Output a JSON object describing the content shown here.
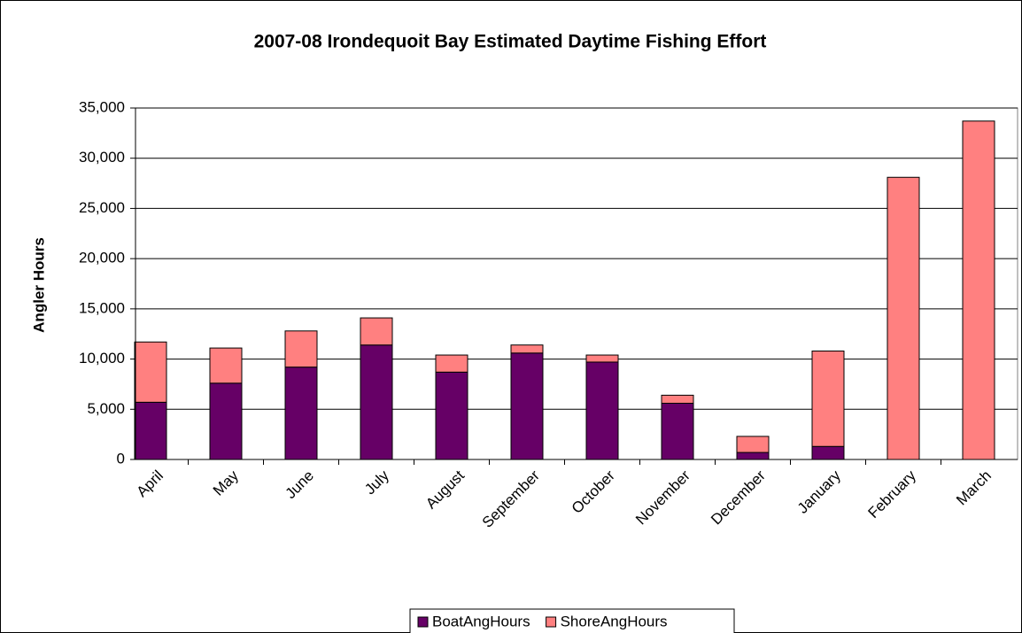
{
  "chart_data": {
    "type": "stacked_bar",
    "title": "2007-08 Irondequoit  Bay Estimated Daytime Fishing Effort",
    "ylabel": "Angler Hours",
    "categories": [
      "April",
      "May",
      "June",
      "July",
      "August",
      "September",
      "October",
      "November",
      "December",
      "January",
      "February",
      "March"
    ],
    "series": [
      {
        "name": "BoatAngHours",
        "color": "#660066",
        "values": [
          5700,
          7600,
          9200,
          11400,
          8700,
          10600,
          9700,
          5600,
          700,
          1300,
          0,
          0
        ]
      },
      {
        "name": "ShoreAngHours",
        "color": "#ff8080",
        "values": [
          6000,
          3500,
          3600,
          2700,
          1700,
          800,
          700,
          800,
          1600,
          9500,
          28100,
          33700
        ]
      }
    ],
    "ylim": [
      0,
      35000
    ],
    "yticks": [
      0,
      {
        "value": 5000,
        "label": "5,000"
      },
      {
        "value": 10000,
        "label": "10,000"
      },
      {
        "value": 15000,
        "label": "15,000"
      },
      {
        "value": 20000,
        "label": "20,000"
      },
      {
        "value": 25000,
        "label": "25,000"
      },
      {
        "value": 30000,
        "label": "30,000"
      },
      {
        "value": 35000,
        "label": "35,000"
      }
    ],
    "grid": true,
    "legend": "bottom"
  }
}
